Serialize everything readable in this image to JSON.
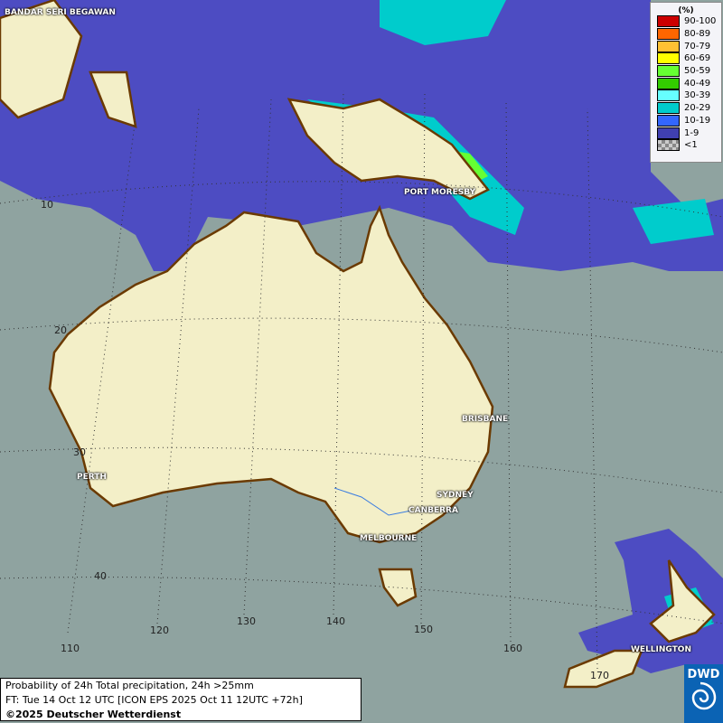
{
  "legend": {
    "unit": "(%)",
    "items": [
      {
        "label": "90-100",
        "color": "#cc0000"
      },
      {
        "label": "80-89",
        "color": "#ff6600"
      },
      {
        "label": "70-79",
        "color": "#ffc133"
      },
      {
        "label": "60-69",
        "color": "#ffff00"
      },
      {
        "label": "50-59",
        "color": "#66ff33"
      },
      {
        "label": "40-49",
        "color": "#33cc00"
      },
      {
        "label": "30-39",
        "color": "#66ffff"
      },
      {
        "label": "20-29",
        "color": "#00cccc"
      },
      {
        "label": "10-19",
        "color": "#3366ff"
      },
      {
        "label": "1-9",
        "color": "#4040b0"
      },
      {
        "label": "<1",
        "color": "#aaaaaa"
      }
    ]
  },
  "cities": {
    "bandar": "BANDAR SERI BEGAWAN",
    "port_moresby": "PORT MORESBY",
    "brisbane": "BRISBANE",
    "perth": "PERTH",
    "sydney": "SYDNEY",
    "canberra": "CANBERRA",
    "melbourne": "MELBOURNE",
    "wellington": "WELLINGTON"
  },
  "latitudes": [
    "10",
    "20",
    "30",
    "40"
  ],
  "longitudes": [
    "110",
    "120",
    "130",
    "140",
    "150",
    "160",
    "170"
  ],
  "info": {
    "title": "Probability of 24h Total precipitation, 24h >25mm",
    "forecast": "FT: Tue 14 Oct 12 UTC [ICON EPS 2025 Oct 11 12UTC +72h]",
    "copyright": "©2025 Deutscher Wetterdienst"
  },
  "logo": {
    "text": "DWD"
  }
}
